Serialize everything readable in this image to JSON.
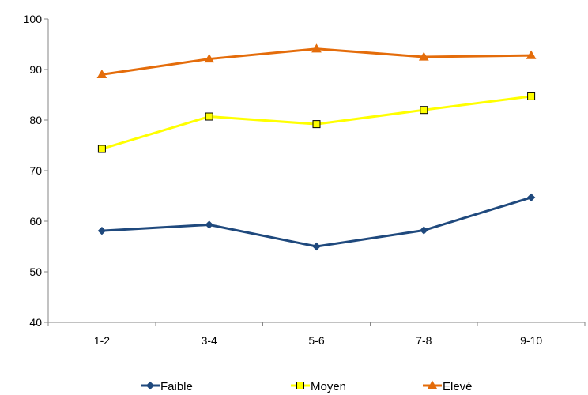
{
  "chart_data": {
    "type": "line",
    "title": "",
    "xlabel": "",
    "ylabel": "",
    "categories": [
      "1-2",
      "3-4",
      "5-6",
      "7-8",
      "9-10"
    ],
    "ylim": [
      40,
      100
    ],
    "yticks": [
      40,
      50,
      60,
      70,
      80,
      90,
      100
    ],
    "grid": false,
    "legend_position": "bottom",
    "series": [
      {
        "name": "Faible",
        "values": [
          58.1,
          59.3,
          55.0,
          58.2,
          64.7
        ],
        "color": "#1f497d",
        "marker": "diamond"
      },
      {
        "name": "Moyen",
        "values": [
          74.3,
          80.7,
          79.2,
          82.0,
          84.7
        ],
        "color": "#ffff00",
        "marker": "square"
      },
      {
        "name": "Elevé",
        "values": [
          89.0,
          92.1,
          94.1,
          92.5,
          92.8
        ],
        "color": "#e46c0a",
        "marker": "triangle"
      }
    ]
  }
}
